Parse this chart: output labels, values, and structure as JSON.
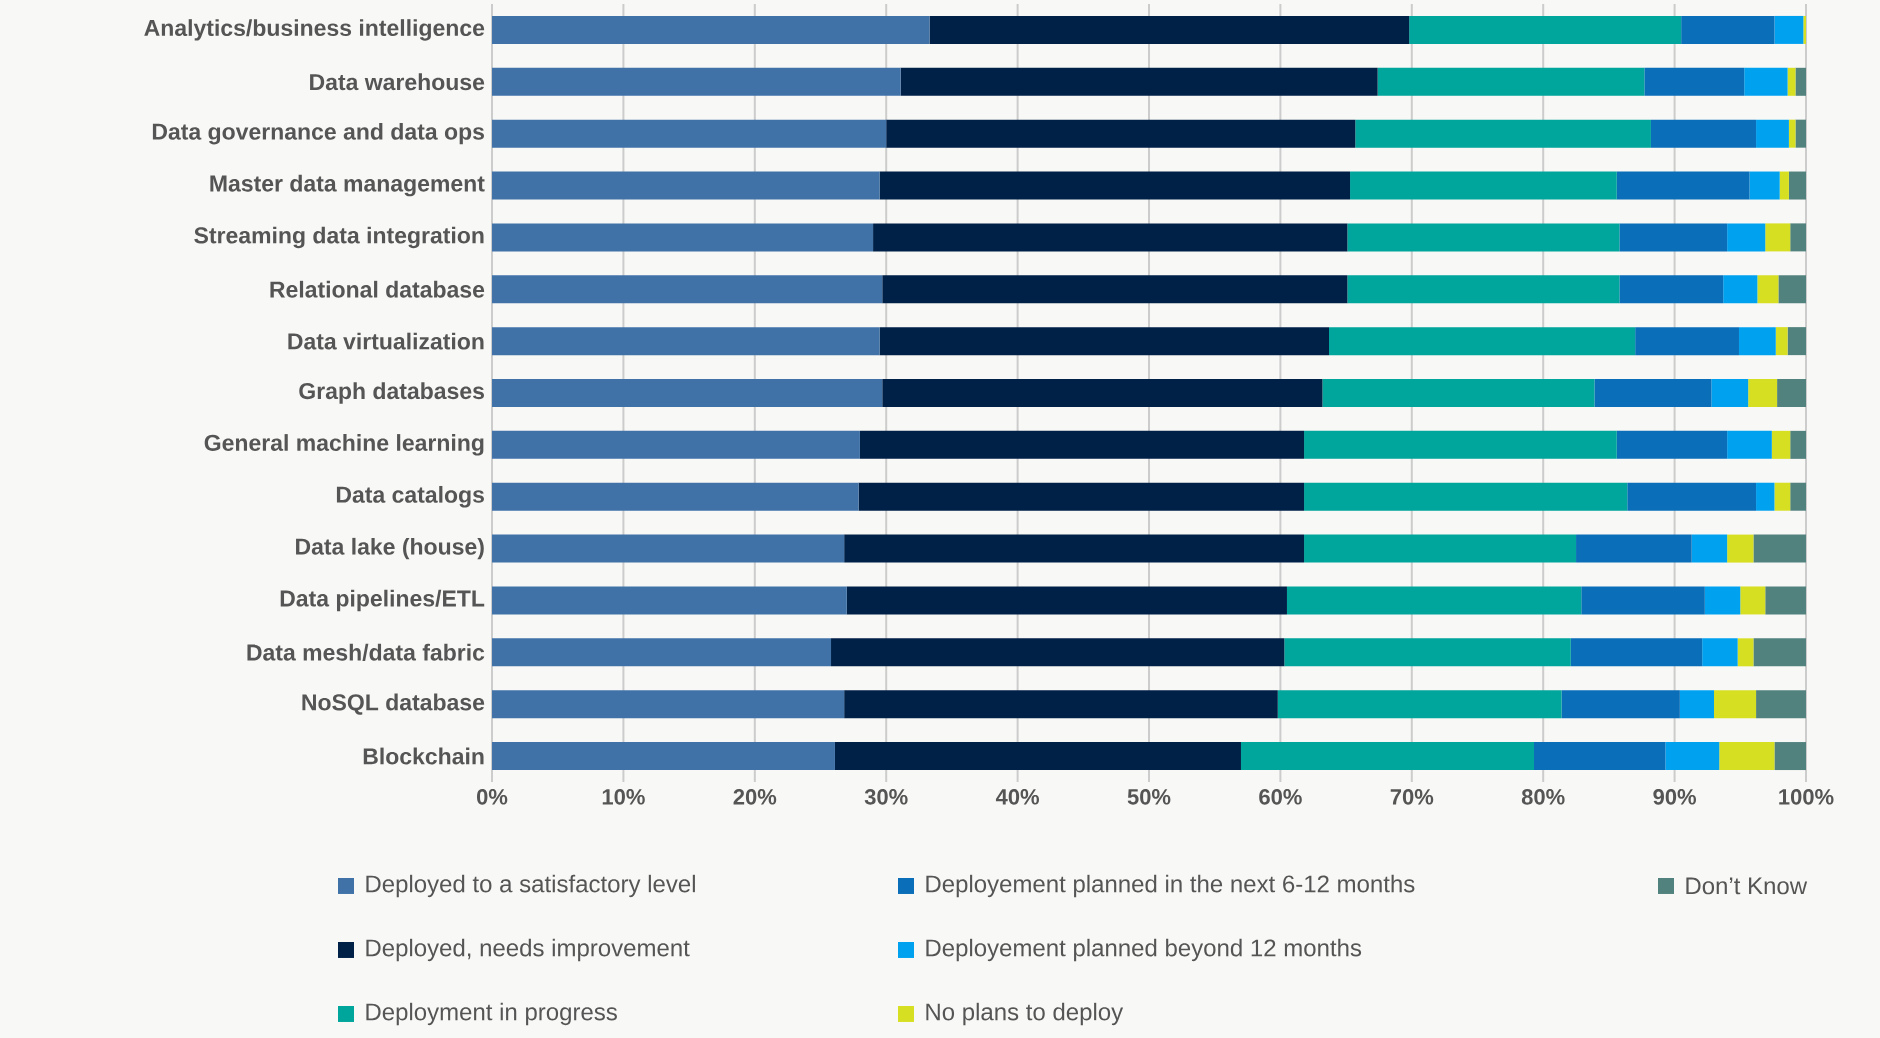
{
  "chart_data": {
    "type": "bar",
    "orientation": "horizontal",
    "stacked": true,
    "grid": "x",
    "legend": "bottom",
    "categories": [
      "Analytics/business intelligence",
      "Data warehouse",
      "Data governance and data ops",
      "Master data management",
      "Streaming data integration",
      "Relational database",
      "Data virtualization",
      "Graph databases",
      "General machine learning",
      "Data catalogs",
      "Data lake (house)",
      "Data pipelines/ETL",
      "Data mesh/data fabric",
      "NoSQL database",
      "Blockchain"
    ],
    "xlim": [
      0,
      100
    ],
    "xticks": [
      {
        "value": 0,
        "label": "0%"
      },
      {
        "value": 10,
        "label": "10%"
      },
      {
        "value": 20,
        "label": "20%"
      },
      {
        "value": 30,
        "label": "30%"
      },
      {
        "value": 40,
        "label": "40%"
      },
      {
        "value": 50,
        "label": "50%"
      },
      {
        "value": 60,
        "label": "60%"
      },
      {
        "value": 70,
        "label": "70%"
      },
      {
        "value": 80,
        "label": "80%"
      },
      {
        "value": 90,
        "label": "90%"
      },
      {
        "value": 100,
        "label": "100%"
      }
    ],
    "series": [
      {
        "name": "Deployed to a satisfactory level",
        "color": "#4072a8",
        "values": [
          33.3,
          31.1,
          30.0,
          29.5,
          29.0,
          29.7,
          29.5,
          29.7,
          28.0,
          27.9,
          26.8,
          27.0,
          25.8,
          26.8,
          26.1
        ]
      },
      {
        "name": "Deployed, needs improvement",
        "color": "#002147",
        "values": [
          36.5,
          36.3,
          35.7,
          35.8,
          36.1,
          35.4,
          34.2,
          33.5,
          33.8,
          33.9,
          35.0,
          33.5,
          34.5,
          33.0,
          30.9
        ]
      },
      {
        "name": "Deployment in progress",
        "color": "#00a59b",
        "values": [
          20.7,
          20.3,
          22.5,
          20.3,
          20.7,
          20.7,
          23.3,
          20.7,
          23.8,
          24.6,
          20.7,
          22.4,
          21.8,
          21.6,
          22.3
        ]
      },
      {
        "name": "Deployement planned in the next 6-12 months",
        "color": "#0a6eb8",
        "values": [
          7.1,
          7.6,
          8.0,
          10.1,
          8.2,
          7.9,
          7.9,
          8.9,
          8.4,
          9.8,
          8.8,
          9.4,
          10.0,
          9.0,
          10.0
        ]
      },
      {
        "name": "Deployement planned beyond 12 months",
        "color": "#00a2f0",
        "values": [
          2.2,
          3.3,
          2.5,
          2.3,
          2.9,
          2.6,
          2.8,
          2.8,
          3.4,
          1.4,
          2.7,
          2.7,
          2.7,
          2.6,
          4.1
        ]
      },
      {
        "name": "No plans to deploy",
        "color": "#d7df23",
        "values": [
          0.2,
          0.6,
          0.5,
          0.7,
          1.9,
          1.6,
          0.9,
          2.2,
          1.4,
          1.2,
          2.0,
          1.9,
          1.2,
          3.2,
          4.2
        ]
      },
      {
        "name": "Don’t Know",
        "color": "#52827e",
        "values": [
          0,
          0.8,
          0.8,
          1.3,
          1.2,
          2.1,
          1.4,
          2.2,
          1.2,
          1.2,
          4.0,
          3.1,
          4.0,
          3.8,
          2.4
        ]
      }
    ]
  }
}
